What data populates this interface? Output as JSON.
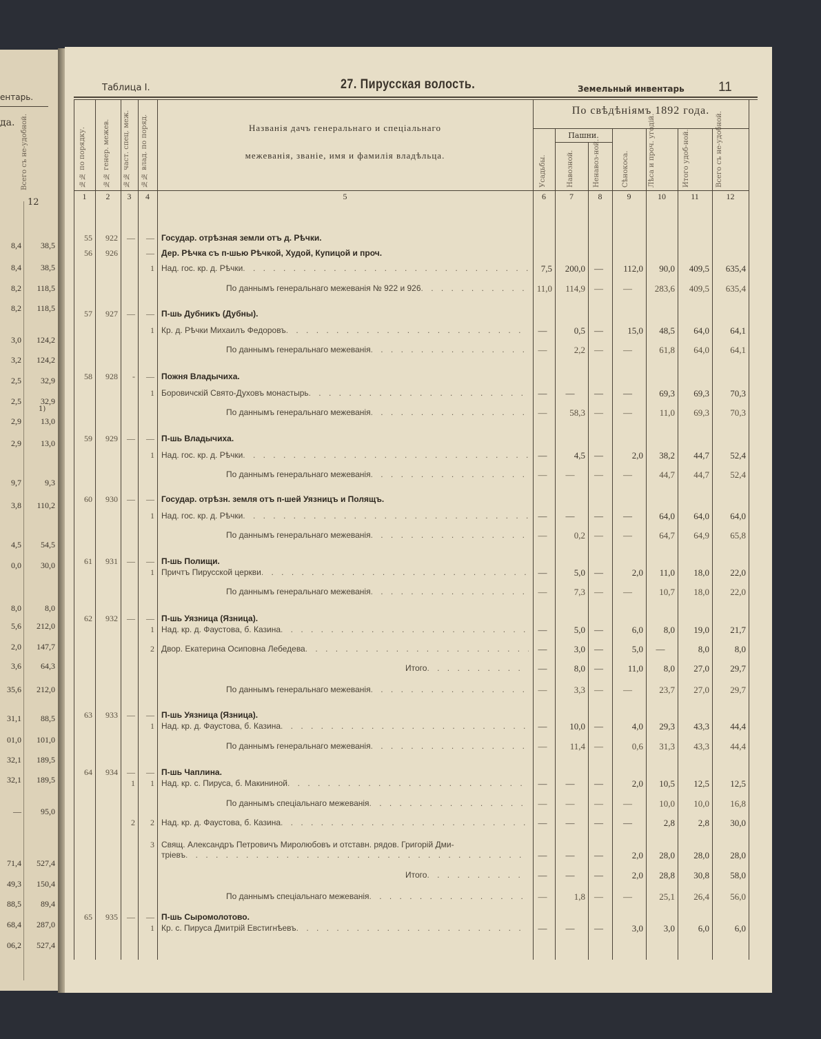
{
  "left_page": {
    "header_fragment": "ентарь.",
    "subheader_fragment": "да.",
    "col12_header": "Всего съ не-удобной.",
    "col12_number": "12",
    "footnote_mark": "1)",
    "rows": [
      [
        "8,4",
        "38,5"
      ],
      [
        "8,4",
        "38,5"
      ],
      [
        "8,2",
        "118,5"
      ],
      [
        "8,2",
        "118,5"
      ],
      [
        "3,0",
        "124,2"
      ],
      [
        "3,2",
        "124,2"
      ],
      [
        "2,5",
        "32,9"
      ],
      [
        "2,5",
        "32,9"
      ],
      [
        "2,9",
        "13,0"
      ],
      [
        "2,9",
        "13,0"
      ],
      [
        "9,7",
        "9,3"
      ],
      [
        "3,8",
        "110,2"
      ],
      [
        "4,5",
        "54,5"
      ],
      [
        "0,0",
        "30,0"
      ],
      [
        "8,0",
        "8,0"
      ],
      [
        "5,6",
        "212,0"
      ],
      [
        "2,0",
        "147,7"
      ],
      [
        "3,6",
        "64,3"
      ],
      [
        "35,6",
        "212,0"
      ],
      [
        "31,1",
        "88,5"
      ],
      [
        "01,0",
        "101,0"
      ],
      [
        "32,1",
        "189,5"
      ],
      [
        "32,1",
        "189,5"
      ],
      [
        "—",
        "95,0"
      ],
      [
        "71,4",
        "527,4"
      ],
      [
        "49,3",
        "150,4"
      ],
      [
        "88,5",
        "89,4"
      ],
      [
        "68,4",
        "287,0"
      ],
      [
        "06,2",
        "527,4"
      ]
    ]
  },
  "header": {
    "table_label": "Таблица I.",
    "title": "27. Пирусская волость.",
    "section": "Земельный инвентарь",
    "page_number": "11"
  },
  "columns": {
    "c1": "№№ по порядку.",
    "c2": "№№ генер. межев.",
    "c3": "№№ част. спец. меж.",
    "c4": "№№ влад. по поряд.",
    "c5_line1": "Названія дачъ генеральнаго и спеціальнаго",
    "c5_line2": "межеванія, званіе, имя и фамилія владѣльца.",
    "group": "По свѣдѣніямъ 1892 года.",
    "pashni": "Пашни.",
    "c6": "Усадьбы.",
    "c7": "Навозной.",
    "c8": "Ненавоз-ной.",
    "c9": "Сѣнокоса.",
    "c10": "Лѣса и проч. угодій.",
    "c11": "Итого удоб-ной.",
    "c12": "Всего съ не-удобной.",
    "numbers": [
      "1",
      "2",
      "3",
      "4",
      "5",
      "6",
      "7",
      "8",
      "9",
      "10",
      "11",
      "12"
    ]
  },
  "rows": [
    {
      "n1": "55",
      "n2": "922",
      "n3": "—",
      "n4": "—",
      "name": "Государ. отрѣзная земли отъ д. Рѣчки.",
      "type": "head",
      "vals": [
        "",
        "",
        "",
        "",
        "",
        "",
        ""
      ]
    },
    {
      "n1": "56",
      "n2": "926",
      "n3": "",
      "n4": "—",
      "name": "Дер. Рѣчка съ п-шью Рѣчкой, Худой, Купицой и проч.",
      "type": "head",
      "vals": [
        "",
        "",
        "",
        "",
        "",
        "",
        ""
      ]
    },
    {
      "n1": "",
      "n2": "",
      "n3": "",
      "n4": "1",
      "name": "Над. гос. кр. д. Рѣчки",
      "type": "item",
      "vals": [
        "7,5",
        "200,0",
        "—",
        "112,0",
        "90,0",
        "409,5",
        "635,4"
      ]
    },
    {
      "n1": "",
      "n2": "",
      "n3": "",
      "n4": "",
      "name": "По даннымъ генеральнаго межеванія № 922 и 926",
      "type": "summ",
      "vals": [
        "11,0",
        "114,9",
        "—",
        "—",
        "283,6",
        "409,5",
        "635,4"
      ]
    },
    {
      "n1": "57",
      "n2": "927",
      "n3": "—",
      "n4": "—",
      "name": "П-шь Дубникъ (Дубны).",
      "type": "head",
      "vals": [
        "",
        "",
        "",
        "",
        "",
        "",
        ""
      ]
    },
    {
      "n1": "",
      "n2": "",
      "n3": "",
      "n4": "1",
      "name": "Кр. д. Рѣчки Михаилъ Федоровъ",
      "type": "item",
      "vals": [
        "—",
        "0,5",
        "—",
        "15,0",
        "48,5",
        "64,0",
        "64,1"
      ]
    },
    {
      "n1": "",
      "n2": "",
      "n3": "",
      "n4": "",
      "name": "По даннымъ генеральнаго межеванія",
      "type": "summ",
      "vals": [
        "—",
        "2,2",
        "—",
        "—",
        "61,8",
        "64,0",
        "64,1"
      ]
    },
    {
      "n1": "58",
      "n2": "928",
      "n3": "-",
      "n4": "—",
      "name": "Пожня Владычиха.",
      "type": "head",
      "vals": [
        "",
        "",
        "",
        "",
        "",
        "",
        ""
      ]
    },
    {
      "n1": "",
      "n2": "",
      "n3": "",
      "n4": "1",
      "name": "Боровичскій Свято-Духовъ монастырь",
      "type": "item",
      "vals": [
        "—",
        "—",
        "—",
        "—",
        "69,3",
        "69,3",
        "70,3"
      ]
    },
    {
      "n1": "",
      "n2": "",
      "n3": "",
      "n4": "",
      "name": "По даннымъ генеральнаго межеванія",
      "type": "summ",
      "vals": [
        "—",
        "58,3",
        "—",
        "—",
        "11,0",
        "69,3",
        "70,3"
      ]
    },
    {
      "n1": "59",
      "n2": "929",
      "n3": "—",
      "n4": "—",
      "name": "П-шь Владычиха.",
      "type": "head",
      "vals": [
        "",
        "",
        "",
        "",
        "",
        "",
        ""
      ]
    },
    {
      "n1": "",
      "n2": "",
      "n3": "",
      "n4": "1",
      "name": "Над. гос. кр. д. Рѣчки",
      "type": "item",
      "vals": [
        "—",
        "4,5",
        "—",
        "2,0",
        "38,2",
        "44,7",
        "52,4"
      ]
    },
    {
      "n1": "",
      "n2": "",
      "n3": "",
      "n4": "",
      "name": "По даннымъ генеральнаго межеванія",
      "type": "summ",
      "vals": [
        "—",
        "—",
        "—",
        "—",
        "44,7",
        "44,7",
        "52,4"
      ]
    },
    {
      "n1": "60",
      "n2": "930",
      "n3": "—",
      "n4": "—",
      "name": "Государ. отрѣзн. земля отъ п-шей Уязницъ и Полящъ.",
      "type": "head",
      "vals": [
        "",
        "",
        "",
        "",
        "",
        "",
        ""
      ]
    },
    {
      "n1": "",
      "n2": "",
      "n3": "",
      "n4": "1",
      "name": "Над. гос. кр. д. Рѣчки",
      "type": "item",
      "vals": [
        "—",
        "—",
        "—",
        "—",
        "64,0",
        "64,0",
        "64,0"
      ]
    },
    {
      "n1": "",
      "n2": "",
      "n3": "",
      "n4": "",
      "name": "По даннымъ генеральнаго межеванія",
      "type": "summ",
      "vals": [
        "—",
        "0,2",
        "—",
        "—",
        "64,7",
        "64,9",
        "65,8"
      ]
    },
    {
      "n1": "61",
      "n2": "931",
      "n3": "—",
      "n4": "—",
      "name": "П-шь Полищи.",
      "type": "head",
      "vals": [
        "",
        "",
        "",
        "",
        "",
        "",
        ""
      ]
    },
    {
      "n1": "",
      "n2": "",
      "n3": "",
      "n4": "1",
      "name": "Причтъ Пирусской церкви",
      "type": "item",
      "vals": [
        "—",
        "5,0",
        "—",
        "2,0",
        "11,0",
        "18,0",
        "22,0"
      ]
    },
    {
      "n1": "",
      "n2": "",
      "n3": "",
      "n4": "",
      "name": "По даннымъ генеральнаго межеванія",
      "type": "summ",
      "vals": [
        "—",
        "7,3",
        "—",
        "—",
        "10,7",
        "18,0",
        "22,0"
      ]
    },
    {
      "n1": "62",
      "n2": "932",
      "n3": "—",
      "n4": "—",
      "name": "П-шь Уязница (Язница).",
      "type": "head",
      "vals": [
        "",
        "",
        "",
        "",
        "",
        "",
        ""
      ]
    },
    {
      "n1": "",
      "n2": "",
      "n3": "",
      "n4": "1",
      "name": "Над. кр. д. Фаустова, б. Казина",
      "type": "item",
      "vals": [
        "—",
        "5,0",
        "—",
        "6,0",
        "8,0",
        "19,0",
        "21,7"
      ]
    },
    {
      "n1": "",
      "n2": "",
      "n3": "",
      "n4": "2",
      "name": "Двор. Екатерина Осиповна Лебедева",
      "type": "item",
      "vals": [
        "—",
        "3,0",
        "—",
        "5,0",
        "—",
        "8,0",
        "8,0"
      ]
    },
    {
      "n1": "",
      "n2": "",
      "n3": "",
      "n4": "",
      "name": "Итого",
      "type": "total",
      "vals": [
        "—",
        "8,0",
        "—",
        "11,0",
        "8,0",
        "27,0",
        "29,7"
      ]
    },
    {
      "n1": "",
      "n2": "",
      "n3": "",
      "n4": "",
      "name": "По даннымъ генеральнаго межеванія",
      "type": "summ",
      "vals": [
        "—",
        "3,3",
        "—",
        "—",
        "23,7",
        "27,0",
        "29,7"
      ]
    },
    {
      "n1": "63",
      "n2": "933",
      "n3": "—",
      "n4": "—",
      "name": "П-шь Уязница (Язница).",
      "type": "head",
      "vals": [
        "",
        "",
        "",
        "",
        "",
        "",
        ""
      ]
    },
    {
      "n1": "",
      "n2": "",
      "n3": "",
      "n4": "1",
      "name": "Над. кр. д. Фаустова, б. Казина",
      "type": "item",
      "vals": [
        "—",
        "10,0",
        "—",
        "4,0",
        "29,3",
        "43,3",
        "44,4"
      ]
    },
    {
      "n1": "",
      "n2": "",
      "n3": "",
      "n4": "",
      "name": "По даннымъ генеральнаго межеванія",
      "type": "summ",
      "vals": [
        "—",
        "11,4",
        "—",
        "0,6",
        "31,3",
        "43,3",
        "44,4"
      ]
    },
    {
      "n1": "64",
      "n2": "934",
      "n3": "—",
      "n4": "—",
      "name": "П-шь Чаплина.",
      "type": "head",
      "vals": [
        "",
        "",
        "",
        "",
        "",
        "",
        ""
      ]
    },
    {
      "n1": "",
      "n2": "",
      "n3": "1",
      "n4": "1",
      "name": "Над. кр. с. Пируса, б. Макининой",
      "type": "item",
      "vals": [
        "—",
        "—",
        "—",
        "2,0",
        "10,5",
        "12,5",
        "12,5"
      ]
    },
    {
      "n1": "",
      "n2": "",
      "n3": "",
      "n4": "",
      "name": "По даннымъ спеціальнаго межеванія",
      "type": "summ",
      "vals": [
        "—",
        "—",
        "—",
        "—",
        "10,0",
        "10,0",
        "16,8"
      ]
    },
    {
      "n1": "",
      "n2": "",
      "n3": "2",
      "n4": "2",
      "name": "Над. кр. д. Фаустова, б. Казина",
      "type": "item",
      "vals": [
        "—",
        "—",
        "—",
        "—",
        "2,8",
        "2,8",
        "30,0"
      ]
    },
    {
      "n1": "",
      "n2": "",
      "n3": "",
      "n4": "3",
      "name": "Свящ. Александръ Петровичъ Миролюбовъ и отставн. рядов. Григорій Дми-",
      "name2": "тріевъ",
      "type": "item2",
      "vals": [
        "—",
        "—",
        "—",
        "2,0",
        "28,0",
        "28,0",
        "28,0"
      ]
    },
    {
      "n1": "",
      "n2": "",
      "n3": "",
      "n4": "",
      "name": "Итого",
      "type": "total",
      "vals": [
        "—",
        "—",
        "—",
        "2,0",
        "28,8",
        "30,8",
        "58,0"
      ]
    },
    {
      "n1": "",
      "n2": "",
      "n3": "",
      "n4": "",
      "name": "По даннымъ спеціальнаго межеванія",
      "type": "summ",
      "vals": [
        "—",
        "1,8",
        "—",
        "—",
        "25,1",
        "26,4",
        "56,0"
      ]
    },
    {
      "n1": "65",
      "n2": "935",
      "n3": "—",
      "n4": "—",
      "name": "П-шь Сыромолотово.",
      "type": "head",
      "vals": [
        "",
        "",
        "",
        "",
        "",
        "",
        ""
      ]
    },
    {
      "n1": "",
      "n2": "",
      "n3": "",
      "n4": "1",
      "name": "Кр. с. Пируса Дмитрій Евстигнѣевъ",
      "type": "item",
      "vals": [
        "—",
        "—",
        "—",
        "3,0",
        "3,0",
        "6,0",
        "6,0"
      ]
    }
  ]
}
